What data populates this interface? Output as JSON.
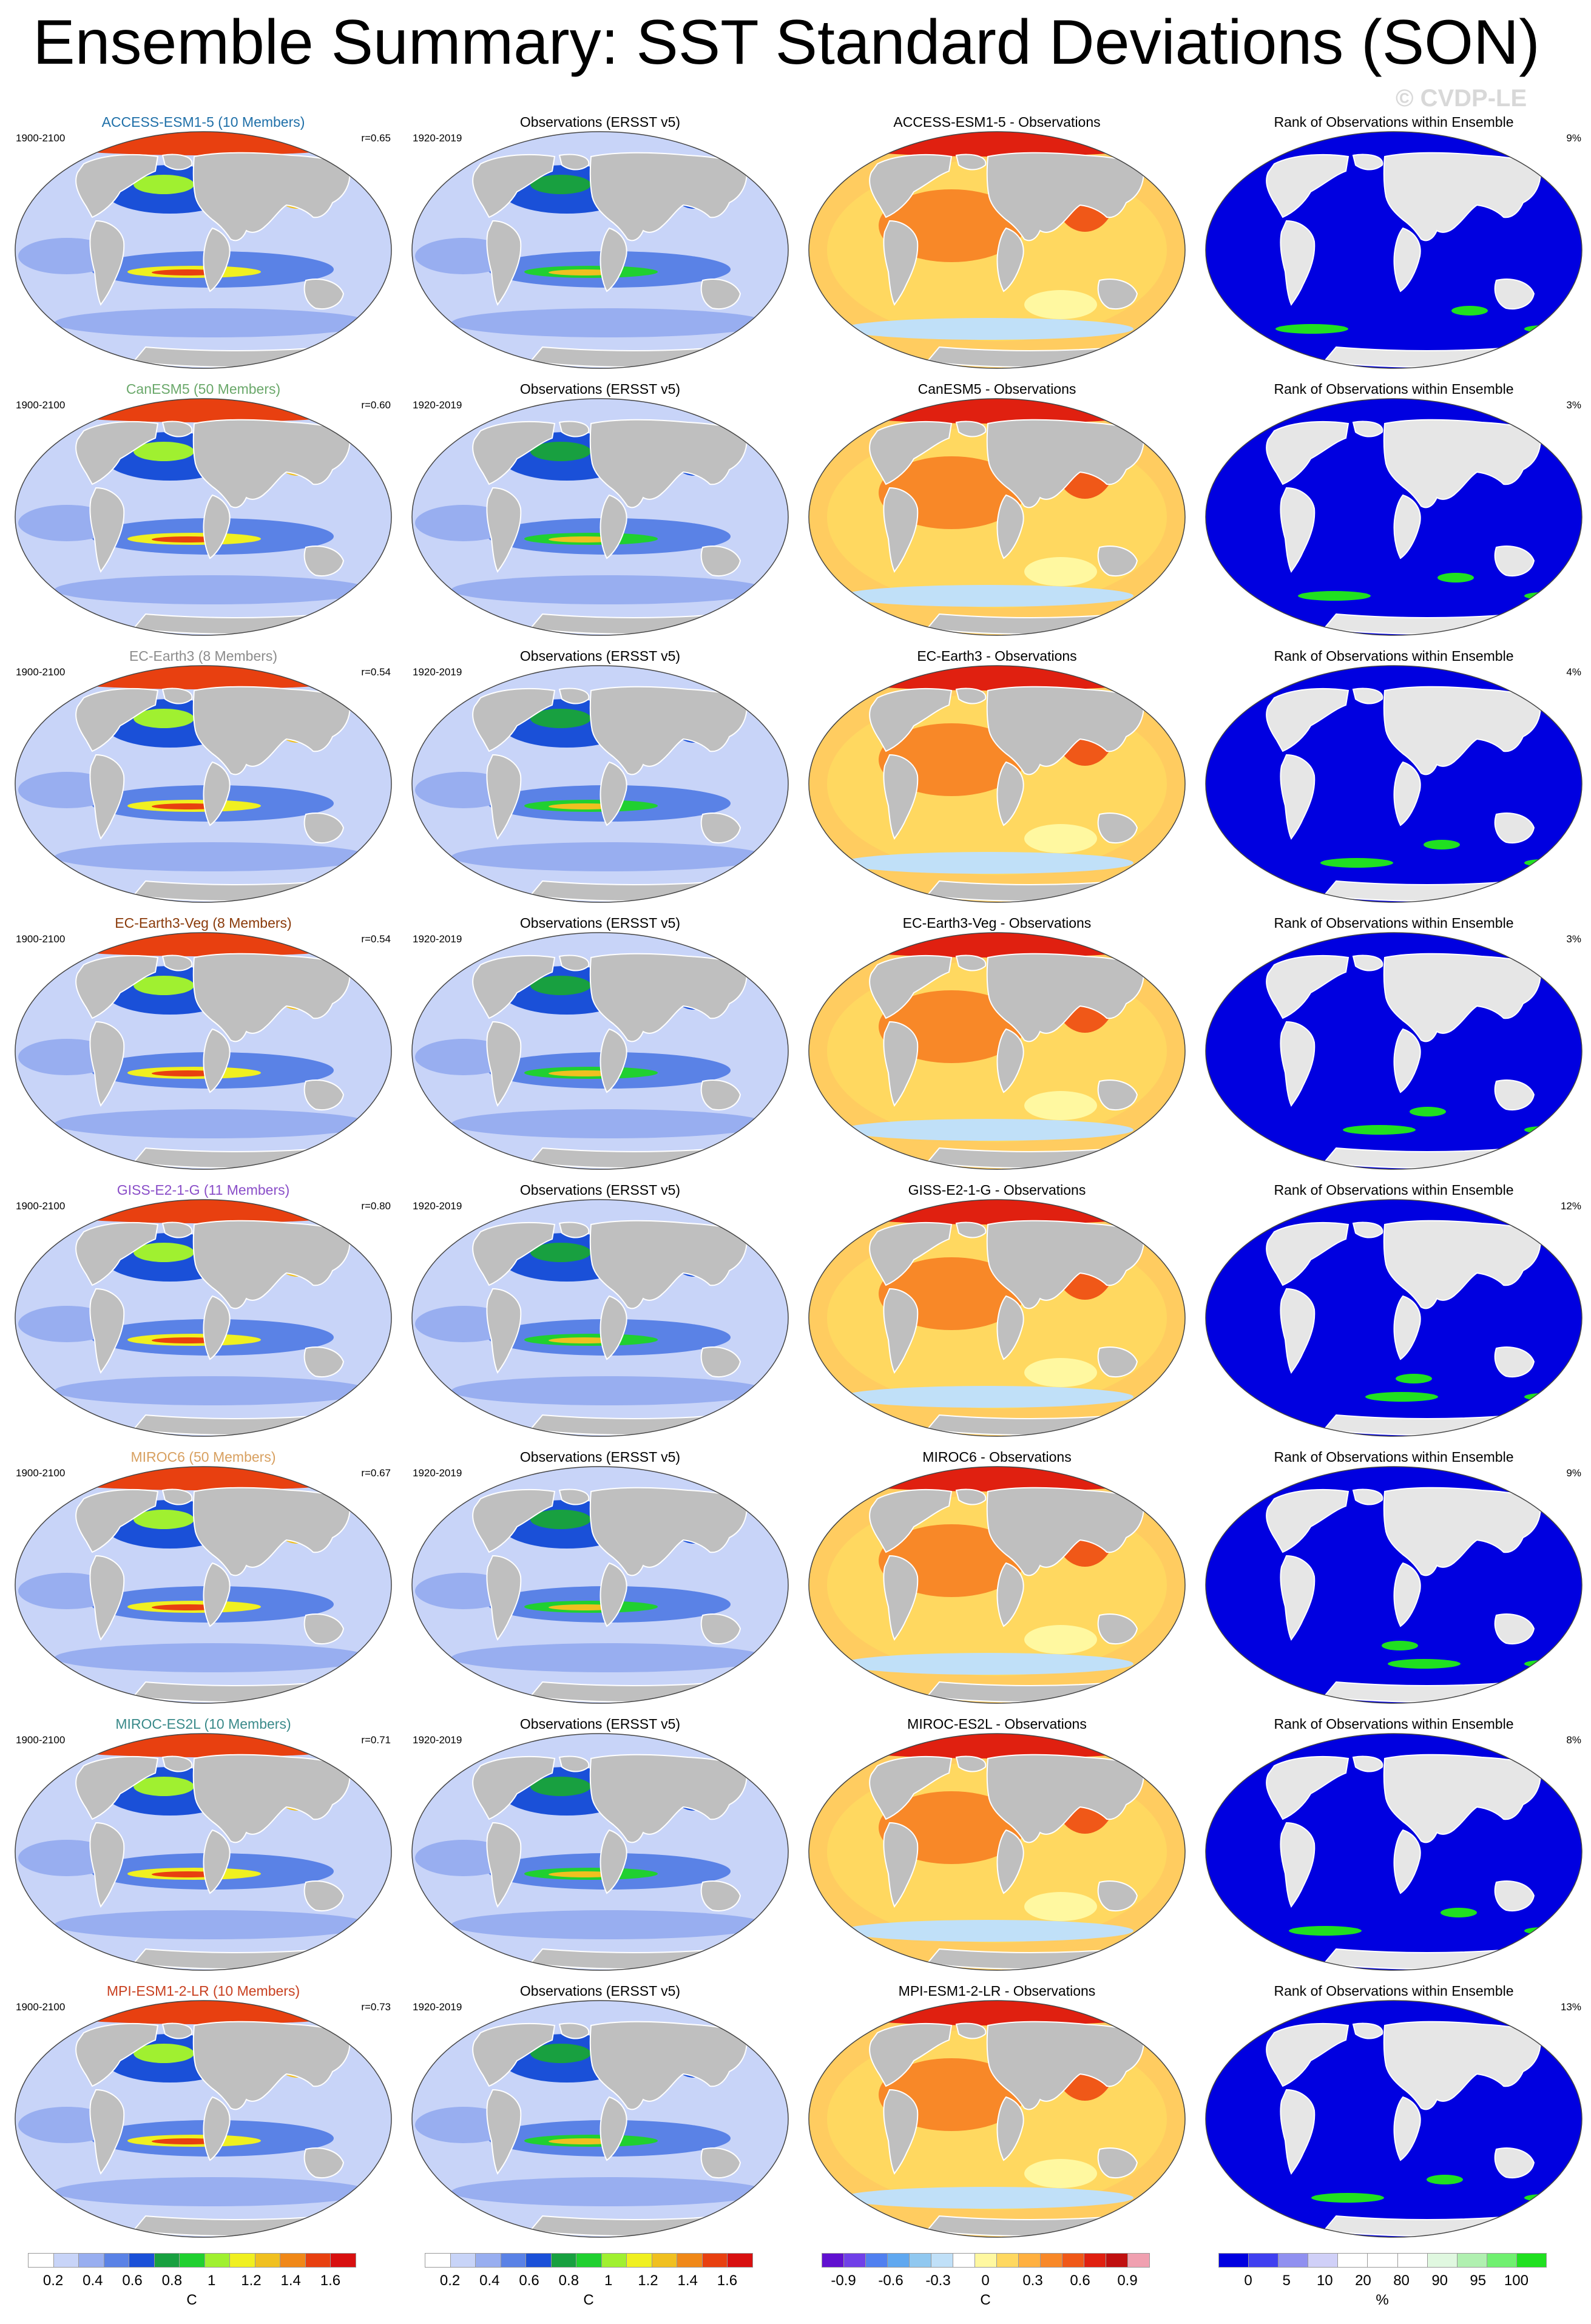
{
  "title": "Ensemble Summary: SST Standard Deviations (SON)",
  "watermark": "© CVDP-LE",
  "colors": {
    "land": "#bfbfbf",
    "land_rank": "#e6e6e6",
    "rank_low": "#0000e0",
    "rank_high": "#20e020"
  },
  "panel_headers": {
    "obs_title": "Observations (ERSST v5)",
    "obs_years": "1920-2019",
    "model_years": "1900-2100",
    "rank_title": "Rank of Observations within Ensemble"
  },
  "chart_data": {
    "type": "heatmap",
    "rows": [
      {
        "model": "ACCESS-ESM1-5 (10 Members)",
        "model_color": "#1e6fa8",
        "r": "r=0.65",
        "diff_title": "ACCESS-ESM1-5 - Observations",
        "rank_pct": "9%"
      },
      {
        "model": "CanESM5 (50 Members)",
        "model_color": "#6aa86a",
        "r": "r=0.60",
        "diff_title": "CanESM5 - Observations",
        "rank_pct": "3%"
      },
      {
        "model": "EC-Earth3 (8 Members)",
        "model_color": "#8c8c8c",
        "r": "r=0.54",
        "diff_title": "EC-Earth3 - Observations",
        "rank_pct": "4%"
      },
      {
        "model": "EC-Earth3-Veg (8 Members)",
        "model_color": "#8a3a0a",
        "r": "r=0.54",
        "diff_title": "EC-Earth3-Veg - Observations",
        "rank_pct": "3%"
      },
      {
        "model": "GISS-E2-1-G (11 Members)",
        "model_color": "#8a4ec8",
        "r": "r=0.80",
        "diff_title": "GISS-E2-1-G - Observations",
        "rank_pct": "12%"
      },
      {
        "model": "MIROC6 (50 Members)",
        "model_color": "#d8a060",
        "r": "r=0.67",
        "diff_title": "MIROC6 - Observations",
        "rank_pct": "9%"
      },
      {
        "model": "MIROC-ES2L (10 Members)",
        "model_color": "#3a8a8a",
        "r": "r=0.71",
        "diff_title": "MIROC-ES2L - Observations",
        "rank_pct": "8%"
      },
      {
        "model": "MPI-ESM1-2-LR (10 Members)",
        "model_color": "#c84020",
        "r": "r=0.73",
        "diff_title": "MPI-ESM1-2-LR - Observations",
        "rank_pct": "13%"
      }
    ],
    "colorbars": [
      {
        "unit": "C",
        "ticks": [
          "0.2",
          "0.4",
          "0.6",
          "0.8",
          "1",
          "1.2",
          "1.4",
          "1.6"
        ],
        "colors": [
          "#ffffff",
          "#c8d4f8",
          "#98aef0",
          "#5a82e6",
          "#1a50d8",
          "#18a040",
          "#20d030",
          "#a0f030",
          "#f0f020",
          "#f0c020",
          "#f08818",
          "#e84010",
          "#d81010"
        ]
      },
      {
        "unit": "C",
        "ticks": [
          "0.2",
          "0.4",
          "0.6",
          "0.8",
          "1",
          "1.2",
          "1.4",
          "1.6"
        ],
        "colors": [
          "#ffffff",
          "#c8d4f8",
          "#98aef0",
          "#5a82e6",
          "#1a50d8",
          "#18a040",
          "#20d030",
          "#a0f030",
          "#f0f020",
          "#f0c020",
          "#f08818",
          "#e84010",
          "#d81010"
        ]
      },
      {
        "unit": "C",
        "ticks": [
          "-0.9",
          "-0.6",
          "-0.3",
          "0",
          "0.3",
          "0.6",
          "0.9"
        ],
        "colors": [
          "#6010d0",
          "#7040e8",
          "#5080f0",
          "#60a8f0",
          "#90c8f0",
          "#c0e0f8",
          "#ffffff",
          "#fff8a0",
          "#ffd860",
          "#ffb040",
          "#f88828",
          "#f05818",
          "#e02010",
          "#c01010",
          "#f0a0b0"
        ]
      },
      {
        "unit": "%",
        "ticks": [
          "0",
          "5",
          "10",
          "20",
          "80",
          "90",
          "95",
          "100"
        ],
        "colors": [
          "#0000e0",
          "#4040f0",
          "#9090f0",
          "#d0d0f8",
          "#ffffff",
          "#ffffff",
          "#ffffff",
          "#e0f8e0",
          "#b0f0b0",
          "#70f070",
          "#20e020"
        ]
      }
    ]
  }
}
